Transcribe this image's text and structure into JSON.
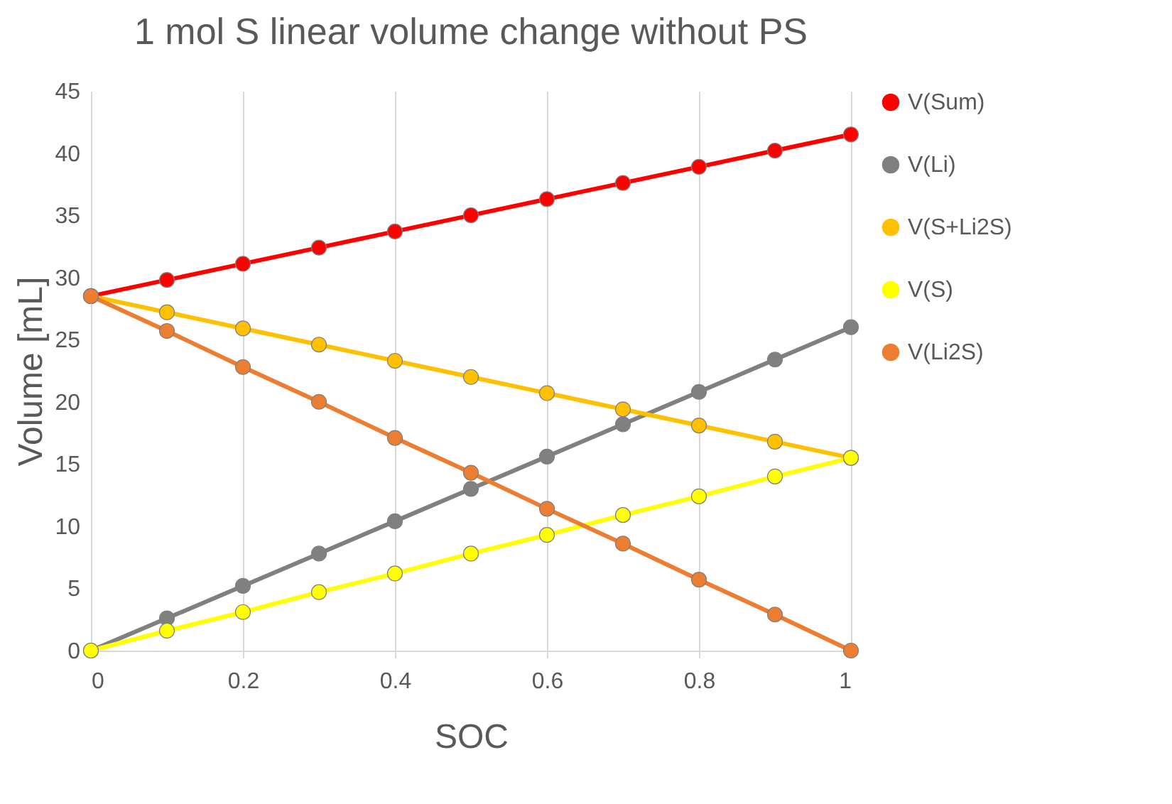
{
  "chart_data": {
    "type": "line",
    "title": "1 mol S linear volume change without PS",
    "xlabel": "SOC",
    "ylabel": "Volume [mL]",
    "x": [
      0,
      0.1,
      0.2,
      0.3,
      0.4,
      0.5,
      0.6,
      0.7,
      0.8,
      0.9,
      1
    ],
    "series": [
      {
        "name": "V(Sum)",
        "color": "#ff0000",
        "values": [
          28.5,
          29.8,
          31.1,
          32.4,
          33.7,
          35.0,
          36.3,
          37.6,
          38.9,
          40.2,
          41.5
        ]
      },
      {
        "name": "V(Li)",
        "color": "#808080",
        "values": [
          0,
          2.6,
          5.2,
          7.8,
          10.4,
          13,
          15.6,
          18.2,
          20.8,
          23.4,
          26
        ]
      },
      {
        "name": "V(S+Li2S)",
        "color": "#ffc000",
        "values": [
          28.5,
          27.2,
          25.9,
          24.6,
          23.3,
          22.0,
          20.7,
          19.4,
          18.1,
          16.8,
          15.5
        ]
      },
      {
        "name": "V(S)",
        "color": "#ffff00",
        "values": [
          0,
          1.6,
          3.1,
          4.7,
          6.2,
          7.8,
          9.3,
          10.9,
          12.4,
          14.0,
          15.5
        ]
      },
      {
        "name": "V(Li2S)",
        "color": "#ed7d31",
        "values": [
          28.5,
          25.7,
          22.8,
          20.0,
          17.1,
          14.3,
          11.4,
          8.6,
          5.7,
          2.9,
          0
        ]
      }
    ],
    "xlim": [
      0,
      1
    ],
    "xticks": [
      0,
      0.2,
      0.4,
      0.6,
      0.8,
      1
    ],
    "ylim": [
      0,
      45
    ],
    "yticks": [
      0,
      5,
      10,
      15,
      20,
      25,
      30,
      35,
      40,
      45
    ],
    "grid": "x",
    "legend": "right",
    "marker": "circle",
    "line_style": "solid"
  }
}
